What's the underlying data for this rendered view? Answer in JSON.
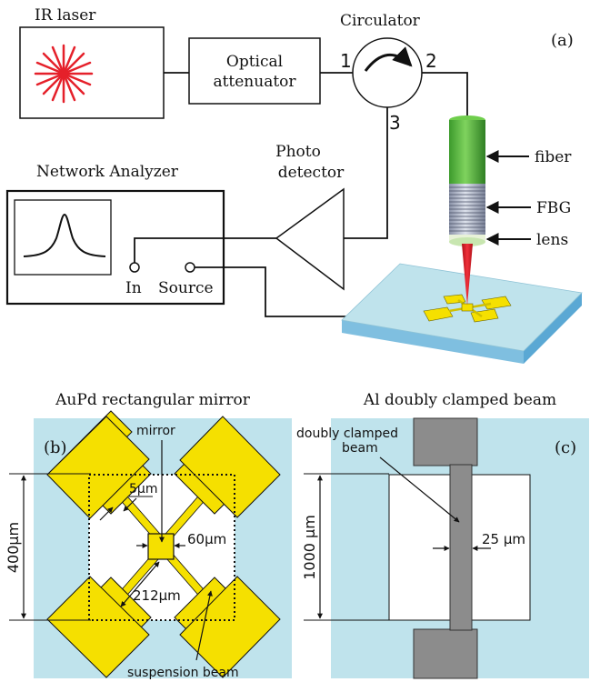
{
  "panel_a": {
    "panel_label": "(a)",
    "ir_laser": "IR laser",
    "attenuator_line1": "Optical",
    "attenuator_line2": "attenuator",
    "circulator": "Circulator",
    "port1": "1",
    "port2": "2",
    "port3": "3",
    "photo_line1": "Photo",
    "photo_line2": "detector",
    "network_analyzer": "Network Analyzer",
    "in_port": "In",
    "source_port": "Source",
    "fiber": "fiber",
    "fbg": "FBG",
    "lens": "lens"
  },
  "panel_b": {
    "title": "AuPd rectangular mirror",
    "panel_label": "(b)",
    "mirror": "mirror",
    "dim_5um": "5μm",
    "dim_60um": "60μm",
    "dim_400um": "400μm",
    "dim_212um": "212μm",
    "suspension_beam": "suspension beam"
  },
  "panel_c": {
    "title": "Al doubly clamped beam",
    "panel_label": "(c)",
    "beam_line1": "doubly clamped",
    "beam_line2": "beam",
    "dim_25um": "25 μm",
    "dim_1000um": "1000 μm"
  },
  "colors": {
    "laser_red": "#e5202a",
    "fiber_green": "#4caf3a",
    "gold": "#f5e000",
    "substrate": "#bfe3ec",
    "beam_gray": "#8c8c8c"
  }
}
